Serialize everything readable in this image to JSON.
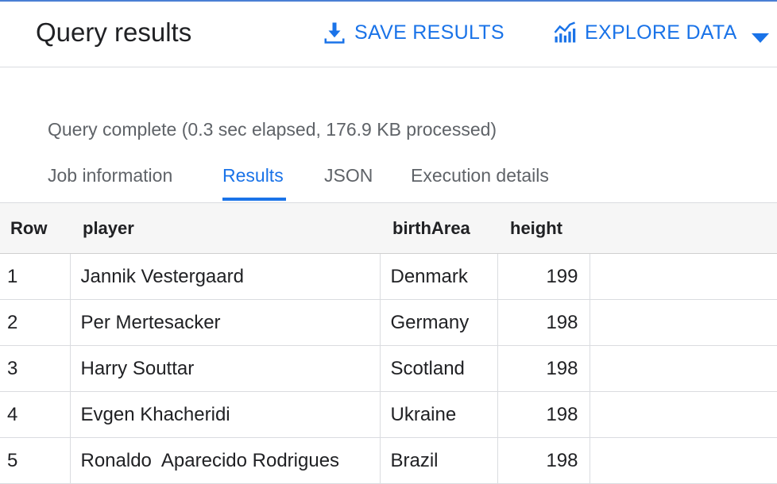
{
  "header": {
    "title": "Query results",
    "save_label": "SAVE RESULTS",
    "save_icon": "download-icon",
    "explore_label": "EXPLORE DATA",
    "explore_icon": "chart-icon",
    "dropdown_icon": "caret-down-icon"
  },
  "status": "Query complete (0.3 sec elapsed, 176.9 KB processed)",
  "tabs": [
    {
      "label": "Job information",
      "active": false
    },
    {
      "label": "Results",
      "active": true
    },
    {
      "label": "JSON",
      "active": false
    },
    {
      "label": "Execution details",
      "active": false
    }
  ],
  "table": {
    "columns": [
      "Row",
      "player",
      "birthArea",
      "height"
    ],
    "rows": [
      {
        "row": "1",
        "player": "Jannik Vestergaard",
        "birthArea": "Denmark",
        "height": "199"
      },
      {
        "row": "2",
        "player": "Per Mertesacker",
        "birthArea": "Germany",
        "height": "198"
      },
      {
        "row": "3",
        "player": "Harry Souttar",
        "birthArea": "Scotland",
        "height": "198"
      },
      {
        "row": "4",
        "player": "Evgen Khacheridi",
        "birthArea": "Ukraine",
        "height": "198"
      },
      {
        "row": "5",
        "player": "Ronaldo  Aparecido Rodrigues",
        "birthArea": "Brazil",
        "height": "198"
      }
    ]
  },
  "colors": {
    "accent": "#1a73e8",
    "muted_text": "#5f6368",
    "header_bg": "#f6f6f6"
  }
}
